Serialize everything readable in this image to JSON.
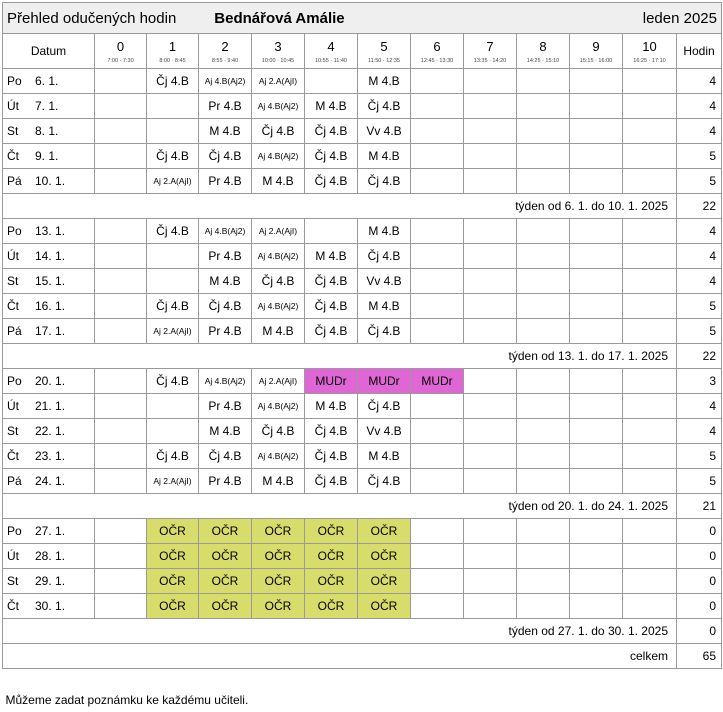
{
  "header": {
    "title": "Přehled odučených hodin",
    "teacher": "Bednářová Amálie",
    "month": "leden 2025"
  },
  "columns": {
    "date_label": "Datum",
    "hours_label": "Hodin",
    "lessons": [
      {
        "num": "0",
        "time": "7:00 · 7:30"
      },
      {
        "num": "1",
        "time": "8:00 · 8:45"
      },
      {
        "num": "2",
        "time": "8:55 · 9:40"
      },
      {
        "num": "3",
        "time": "10:00 · 10:45"
      },
      {
        "num": "4",
        "time": "10:55 · 11:40"
      },
      {
        "num": "5",
        "time": "11:50 · 12:35"
      },
      {
        "num": "6",
        "time": "12:45 · 13:30"
      },
      {
        "num": "7",
        "time": "13:35 · 14:20"
      },
      {
        "num": "8",
        "time": "14:25 · 15:10"
      },
      {
        "num": "9",
        "time": "15:15 · 16:00"
      },
      {
        "num": "10",
        "time": "16:25 · 17:10"
      }
    ]
  },
  "weeks": [
    {
      "days": [
        {
          "day": "Po",
          "date": "6. 1.",
          "lessons": [
            "",
            "Čj 4.B",
            "Aj 4.B(Aj2)",
            "Aj 2.A(AjI)",
            "",
            "M 4.B",
            "",
            "",
            "",
            "",
            ""
          ],
          "hours": "4"
        },
        {
          "day": "Út",
          "date": "7. 1.",
          "lessons": [
            "",
            "",
            "Pr 4.B",
            "Aj 4.B(Aj2)",
            "M 4.B",
            "Čj 4.B",
            "",
            "",
            "",
            "",
            ""
          ],
          "hours": "4"
        },
        {
          "day": "St",
          "date": "8. 1.",
          "lessons": [
            "",
            "",
            "M 4.B",
            "Čj 4.B",
            "Čj 4.B",
            "Vv 4.B",
            "",
            "",
            "",
            "",
            ""
          ],
          "hours": "4"
        },
        {
          "day": "Čt",
          "date": "9. 1.",
          "lessons": [
            "",
            "Čj 4.B",
            "Čj 4.B",
            "Aj 4.B(Aj2)",
            "Čj 4.B",
            "M 4.B",
            "",
            "",
            "",
            "",
            ""
          ],
          "hours": "5"
        },
        {
          "day": "Pá",
          "date": "10. 1.",
          "lessons": [
            "",
            "Aj 2.A(AjI)",
            "Pr 4.B",
            "M 4.B",
            "Čj 4.B",
            "Čj 4.B",
            "",
            "",
            "",
            "",
            ""
          ],
          "hours": "5"
        }
      ],
      "summary_label": "týden od 6. 1. do 10. 1. 2025",
      "summary_hours": "22"
    },
    {
      "days": [
        {
          "day": "Po",
          "date": "13. 1.",
          "lessons": [
            "",
            "Čj 4.B",
            "Aj 4.B(Aj2)",
            "Aj 2.A(AjI)",
            "",
            "M 4.B",
            "",
            "",
            "",
            "",
            ""
          ],
          "hours": "4"
        },
        {
          "day": "Út",
          "date": "14. 1.",
          "lessons": [
            "",
            "",
            "Pr 4.B",
            "Aj 4.B(Aj2)",
            "M 4.B",
            "Čj 4.B",
            "",
            "",
            "",
            "",
            ""
          ],
          "hours": "4"
        },
        {
          "day": "St",
          "date": "15. 1.",
          "lessons": [
            "",
            "",
            "M 4.B",
            "Čj 4.B",
            "Čj 4.B",
            "Vv 4.B",
            "",
            "",
            "",
            "",
            ""
          ],
          "hours": "4"
        },
        {
          "day": "Čt",
          "date": "16. 1.",
          "lessons": [
            "",
            "Čj 4.B",
            "Čj 4.B",
            "Aj 4.B(Aj2)",
            "Čj 4.B",
            "M 4.B",
            "",
            "",
            "",
            "",
            ""
          ],
          "hours": "5"
        },
        {
          "day": "Pá",
          "date": "17. 1.",
          "lessons": [
            "",
            "Aj 2.A(AjI)",
            "Pr 4.B",
            "M 4.B",
            "Čj 4.B",
            "Čj 4.B",
            "",
            "",
            "",
            "",
            ""
          ],
          "hours": "5"
        }
      ],
      "summary_label": "týden od 13. 1. do 17. 1. 2025",
      "summary_hours": "22"
    },
    {
      "days": [
        {
          "day": "Po",
          "date": "20. 1.",
          "lessons": [
            "",
            "Čj 4.B",
            "Aj 4.B(Aj2)",
            "Aj 2.A(AjI)",
            "MUDr",
            "MUDr",
            "MUDr",
            "",
            "",
            "",
            ""
          ],
          "hours": "3"
        },
        {
          "day": "Út",
          "date": "21. 1.",
          "lessons": [
            "",
            "",
            "Pr 4.B",
            "Aj 4.B(Aj2)",
            "M 4.B",
            "Čj 4.B",
            "",
            "",
            "",
            "",
            ""
          ],
          "hours": "4"
        },
        {
          "day": "St",
          "date": "22. 1.",
          "lessons": [
            "",
            "",
            "M 4.B",
            "Čj 4.B",
            "Čj 4.B",
            "Vv 4.B",
            "",
            "",
            "",
            "",
            ""
          ],
          "hours": "4"
        },
        {
          "day": "Čt",
          "date": "23. 1.",
          "lessons": [
            "",
            "Čj 4.B",
            "Čj 4.B",
            "Aj 4.B(Aj2)",
            "Čj 4.B",
            "M 4.B",
            "",
            "",
            "",
            "",
            ""
          ],
          "hours": "5"
        },
        {
          "day": "Pá",
          "date": "24. 1.",
          "lessons": [
            "",
            "Aj 2.A(AjI)",
            "Pr 4.B",
            "M 4.B",
            "Čj 4.B",
            "Čj 4.B",
            "",
            "",
            "",
            "",
            ""
          ],
          "hours": "5"
        }
      ],
      "summary_label": "týden od 20. 1. do 24. 1. 2025",
      "summary_hours": "21"
    },
    {
      "days": [
        {
          "day": "Po",
          "date": "27. 1.",
          "lessons": [
            "",
            "OČR",
            "OČR",
            "OČR",
            "OČR",
            "OČR",
            "",
            "",
            "",
            "",
            ""
          ],
          "hours": "0"
        },
        {
          "day": "Út",
          "date": "28. 1.",
          "lessons": [
            "",
            "OČR",
            "OČR",
            "OČR",
            "OČR",
            "OČR",
            "",
            "",
            "",
            "",
            ""
          ],
          "hours": "0"
        },
        {
          "day": "St",
          "date": "29. 1.",
          "lessons": [
            "",
            "OČR",
            "OČR",
            "OČR",
            "OČR",
            "OČR",
            "",
            "",
            "",
            "",
            ""
          ],
          "hours": "0"
        },
        {
          "day": "Čt",
          "date": "30. 1.",
          "lessons": [
            "",
            "OČR",
            "OČR",
            "OČR",
            "OČR",
            "OČR",
            "",
            "",
            "",
            "",
            ""
          ],
          "hours": "0"
        }
      ],
      "summary_label": "týden od 27. 1. do 30. 1. 2025",
      "summary_hours": "0"
    }
  ],
  "total": {
    "label": "celkem",
    "hours": "65"
  },
  "note": "Můžeme zadat poznámku ke každému učiteli.",
  "colors": {
    "mudr": "#e066d6",
    "ocr": "#d8dc6a",
    "header_bg": "#efefef",
    "grid": "#9a9a9a"
  }
}
